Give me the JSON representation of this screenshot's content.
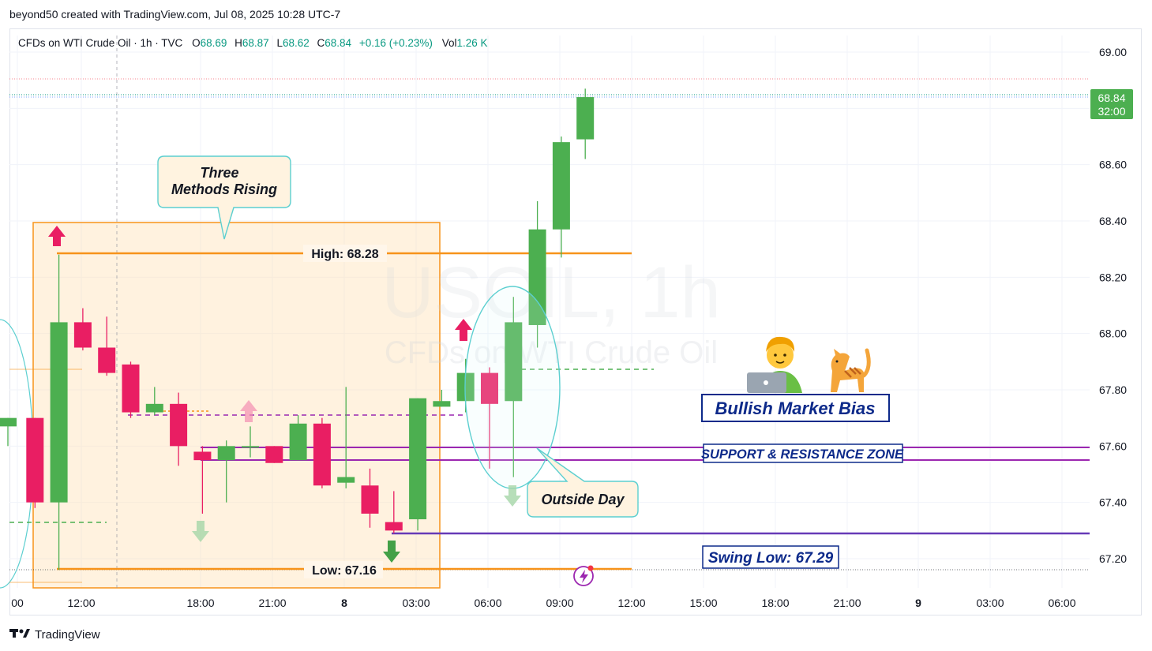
{
  "caption": "beyond50 created with TradingView.com, Jul 08, 2025 10:28 UTC-7",
  "footer": {
    "brand": "TradingView",
    "logo": "tradingview-logo-icon"
  },
  "legend": {
    "symbol": "CFDs on WTI Crude Oil · 1h · TVC",
    "o_label": "O",
    "o_val": "68.69",
    "h_label": "H",
    "h_val": "68.87",
    "l_label": "L",
    "l_val": "68.62",
    "c_label": "C",
    "c_val": "68.84",
    "change": "+0.16 (+0.23%)",
    "vol_label": "Vol",
    "vol_val": "1.26 K"
  },
  "watermark": {
    "line1": "USOIL, 1h",
    "line2": "CFDs on WTI Crude Oil"
  },
  "price_badge": {
    "price": "68.84",
    "countdown": "32:00"
  },
  "annotations": {
    "three_methods": "Three\nMethods Rising",
    "high": "High: 68.28",
    "low": "Low: 67.16",
    "outside_day": "Outside Day",
    "bullish": "Bullish Market Bias",
    "sr_zone": "SUPPORT & RESISTANCE ZONE",
    "swing_low": "Swing Low: 67.29"
  },
  "colors": {
    "up": "#4caf50",
    "down": "#e91e63",
    "orange": "#f7931a",
    "purple": "#9c27b0",
    "navy": "#0d2a8a",
    "axis_text": "#131722"
  },
  "chart_data": {
    "type": "candlestick",
    "symbol": "CFDs on WTI Crude Oil",
    "interval": "1h",
    "y_ticks": [
      "69.00",
      "68.60",
      "68.40",
      "68.20",
      "68.00",
      "67.80",
      "67.60",
      "67.40",
      "67.20"
    ],
    "x_ticks": [
      "00",
      "12:00",
      "18:00",
      "21:00",
      "8",
      "03:00",
      "06:00",
      "09:00",
      "12:00",
      "15:00",
      "18:00",
      "21:00",
      "9",
      "03:00",
      "06:00"
    ],
    "ylim": [
      67.1,
      69.1
    ],
    "candles": [
      {
        "o": 67.67,
        "h": 67.7,
        "l": 67.6,
        "c": 67.7
      },
      {
        "o": 67.7,
        "h": 67.7,
        "l": 67.38,
        "c": 67.4
      },
      {
        "o": 67.4,
        "h": 68.28,
        "l": 67.16,
        "c": 68.04
      },
      {
        "o": 68.04,
        "h": 68.09,
        "l": 67.94,
        "c": 67.95
      },
      {
        "o": 67.95,
        "h": 68.06,
        "l": 67.85,
        "c": 67.86
      },
      {
        "o": 67.89,
        "h": 67.9,
        "l": 67.7,
        "c": 67.72
      },
      {
        "o": 67.72,
        "h": 67.81,
        "l": 67.71,
        "c": 67.75
      },
      {
        "o": 67.75,
        "h": 67.79,
        "l": 67.53,
        "c": 67.6
      },
      {
        "o": 67.58,
        "h": 67.6,
        "l": 67.36,
        "c": 67.55
      },
      {
        "o": 67.55,
        "h": 67.62,
        "l": 67.4,
        "c": 67.6
      },
      {
        "o": 67.6,
        "h": 67.67,
        "l": 67.56,
        "c": 67.6
      },
      {
        "o": 67.6,
        "h": 67.6,
        "l": 67.54,
        "c": 67.54
      },
      {
        "o": 67.55,
        "h": 67.71,
        "l": 67.55,
        "c": 67.68
      },
      {
        "o": 67.68,
        "h": 67.7,
        "l": 67.45,
        "c": 67.46
      },
      {
        "o": 67.47,
        "h": 67.81,
        "l": 67.45,
        "c": 67.49
      },
      {
        "o": 67.46,
        "h": 67.52,
        "l": 67.31,
        "c": 67.36
      },
      {
        "o": 67.33,
        "h": 67.44,
        "l": 67.29,
        "c": 67.3
      },
      {
        "o": 67.34,
        "h": 67.77,
        "l": 67.3,
        "c": 67.77
      },
      {
        "o": 67.74,
        "h": 67.8,
        "l": 67.74,
        "c": 67.76
      },
      {
        "o": 67.76,
        "h": 67.91,
        "l": 67.72,
        "c": 67.86
      },
      {
        "o": 67.86,
        "h": 67.88,
        "l": 67.52,
        "c": 67.75
      },
      {
        "o": 67.76,
        "h": 68.13,
        "l": 67.49,
        "c": 68.04
      },
      {
        "o": 68.03,
        "h": 68.47,
        "l": 67.95,
        "c": 68.37
      },
      {
        "o": 68.37,
        "h": 68.7,
        "l": 68.27,
        "c": 68.68
      },
      {
        "o": 68.69,
        "h": 68.87,
        "l": 68.62,
        "c": 68.84
      }
    ],
    "levels": {
      "high": 68.28,
      "low": 67.16,
      "sr_zone_top": 67.6,
      "sr_zone_bottom": 67.55,
      "swing_low": 67.29
    },
    "current_price": 68.84,
    "countdown": "32:00"
  }
}
